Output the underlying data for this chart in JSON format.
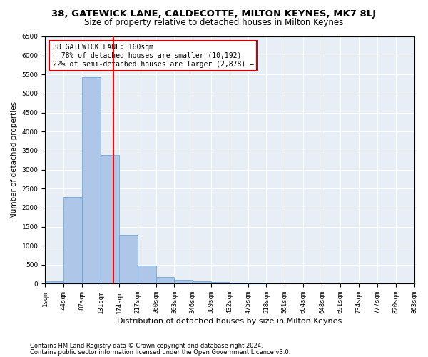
{
  "title1": "38, GATEWICK LANE, CALDECOTTE, MILTON KEYNES, MK7 8LJ",
  "title2": "Size of property relative to detached houses in Milton Keynes",
  "xlabel": "Distribution of detached houses by size in Milton Keynes",
  "ylabel": "Number of detached properties",
  "annotation_title": "38 GATEWICK LANE: 160sqm",
  "annotation_line1": "← 78% of detached houses are smaller (10,192)",
  "annotation_line2": "22% of semi-detached houses are larger (2,878) →",
  "footer1": "Contains HM Land Registry data © Crown copyright and database right 2024.",
  "footer2": "Contains public sector information licensed under the Open Government Licence v3.0.",
  "property_size": 160,
  "bin_edges": [
    1,
    44,
    87,
    131,
    174,
    217,
    260,
    303,
    346,
    389,
    432,
    475,
    518,
    561,
    604,
    648,
    691,
    734,
    777,
    820,
    863
  ],
  "bar_values": [
    60,
    2270,
    5430,
    3380,
    1290,
    480,
    175,
    100,
    65,
    40,
    30,
    20,
    10,
    5,
    5,
    3,
    2,
    2,
    1,
    1
  ],
  "bar_color": "#aec6e8",
  "bar_edge_color": "#5a9fd4",
  "red_line_x": 160,
  "annotation_box_color": "#cc0000",
  "background_color": "#e8eef5",
  "ylim": [
    0,
    6500
  ],
  "title1_fontsize": 9.5,
  "title2_fontsize": 8.5,
  "ylabel_fontsize": 7.5,
  "xlabel_fontsize": 8,
  "tick_fontsize": 6.5,
  "annotation_fontsize": 7,
  "footer_fontsize": 6
}
